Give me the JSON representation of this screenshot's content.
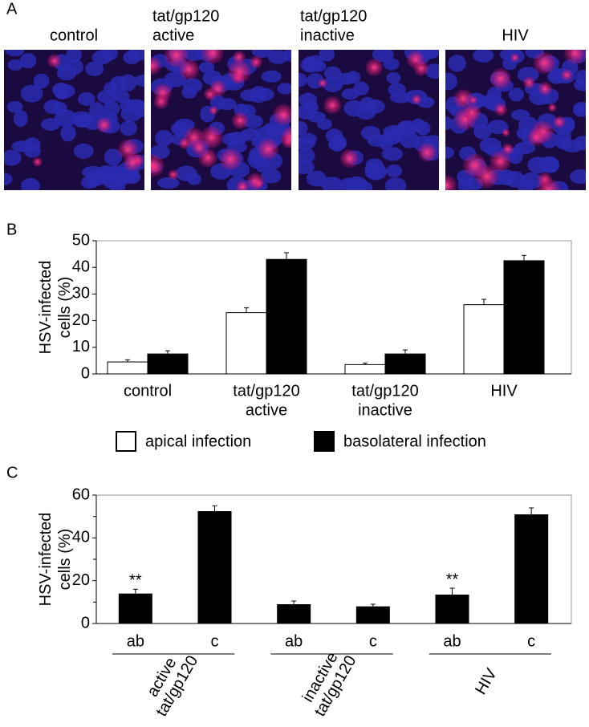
{
  "panel_labels": [
    "A",
    "B",
    "C"
  ],
  "image_panel": {
    "labels": [
      [
        "control"
      ],
      [
        "tat/gp120",
        "active"
      ],
      [
        "tat/gp120",
        "inactive"
      ],
      [
        "HIV"
      ]
    ]
  },
  "chart_data": [
    {
      "type": "bar",
      "ylabel": [
        "HSV-infected",
        "cells (%)"
      ],
      "categories": [
        [
          "control"
        ],
        [
          "tat/gp120",
          "active"
        ],
        [
          "tat/gp120",
          "inactive"
        ],
        [
          "HIV"
        ]
      ],
      "series": [
        {
          "name": "apical infection",
          "color": "#ffffff",
          "values": [
            4.5,
            23,
            3.5,
            26
          ],
          "errors": [
            0.8,
            1.8,
            0.6,
            2
          ]
        },
        {
          "name": "basolateral infection",
          "color": "#000000",
          "values": [
            7.5,
            43,
            7.5,
            42.5
          ],
          "errors": [
            1.2,
            2.5,
            1.5,
            2
          ]
        }
      ],
      "ylim": [
        0,
        50
      ],
      "yticks": [
        0,
        10,
        20,
        30,
        40,
        50
      ],
      "legend": "bottom"
    },
    {
      "type": "bar",
      "ylabel": [
        "HSV-infected",
        "cells (%)"
      ],
      "categories": [
        "ab",
        "c",
        "ab",
        "c",
        "ab",
        "c"
      ],
      "groups": [
        [
          "active",
          "tat/gp120"
        ],
        [
          "inactive",
          "tat/gp120"
        ],
        [
          "HIV"
        ]
      ],
      "color": "#000000",
      "values": [
        14,
        52.5,
        9,
        8,
        13.5,
        51
      ],
      "errors": [
        2,
        2.5,
        1.5,
        1,
        3,
        3
      ],
      "annotations": [
        "**",
        null,
        null,
        null,
        "**",
        null
      ],
      "ylim": [
        0,
        60
      ],
      "yticks": [
        0,
        20,
        40,
        60
      ],
      "minor_yticks": [
        10,
        30,
        50
      ]
    }
  ]
}
